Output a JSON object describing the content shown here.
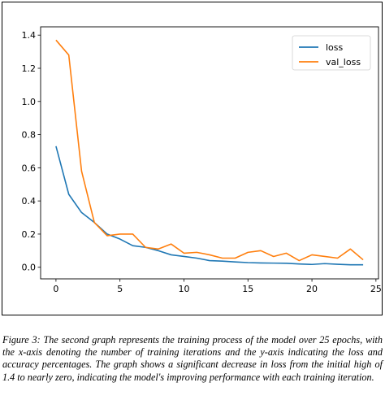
{
  "caption": "Figure 3: The second graph represents the training process of the model over 25 epochs, with the x-axis denoting the number of training iterations and the y-axis indicating the loss and accuracy percentages. The graph shows a significant decrease in loss from the initial high of 1.4 to nearly zero, indicating the model's improving performance with each training iteration.",
  "chart_data": {
    "type": "line",
    "title": "",
    "xlabel": "",
    "ylabel": "",
    "xlim": [
      -1.2,
      25.2
    ],
    "ylim": [
      -0.07,
      1.45
    ],
    "xticks": [
      0,
      5,
      10,
      15,
      20,
      25
    ],
    "yticks": [
      0.0,
      0.2,
      0.4,
      0.6,
      0.8,
      1.0,
      1.2,
      1.4
    ],
    "xtick_labels": [
      "0",
      "5",
      "10",
      "15",
      "20",
      "25"
    ],
    "ytick_labels": [
      "0.0",
      "0.2",
      "0.4",
      "0.6",
      "0.8",
      "1.0",
      "1.2",
      "1.4"
    ],
    "grid": false,
    "legend": "top-right",
    "x": [
      0,
      1,
      2,
      3,
      4,
      5,
      6,
      7,
      8,
      9,
      10,
      11,
      12,
      13,
      14,
      15,
      16,
      17,
      18,
      19,
      20,
      21,
      22,
      23,
      24
    ],
    "series": [
      {
        "name": "loss",
        "color": "#1f77b4",
        "values": [
          0.73,
          0.44,
          0.33,
          0.27,
          0.2,
          0.17,
          0.13,
          0.12,
          0.1,
          0.075,
          0.065,
          0.055,
          0.04,
          0.037,
          0.032,
          0.028,
          0.026,
          0.025,
          0.024,
          0.02,
          0.017,
          0.022,
          0.018,
          0.015,
          0.015
        ]
      },
      {
        "name": "val_loss",
        "color": "#ff7f0e",
        "values": [
          1.37,
          1.28,
          0.58,
          0.27,
          0.19,
          0.2,
          0.2,
          0.12,
          0.11,
          0.14,
          0.085,
          0.09,
          0.075,
          0.055,
          0.055,
          0.09,
          0.1,
          0.065,
          0.085,
          0.04,
          0.075,
          0.065,
          0.055,
          0.11,
          0.045
        ]
      }
    ]
  }
}
